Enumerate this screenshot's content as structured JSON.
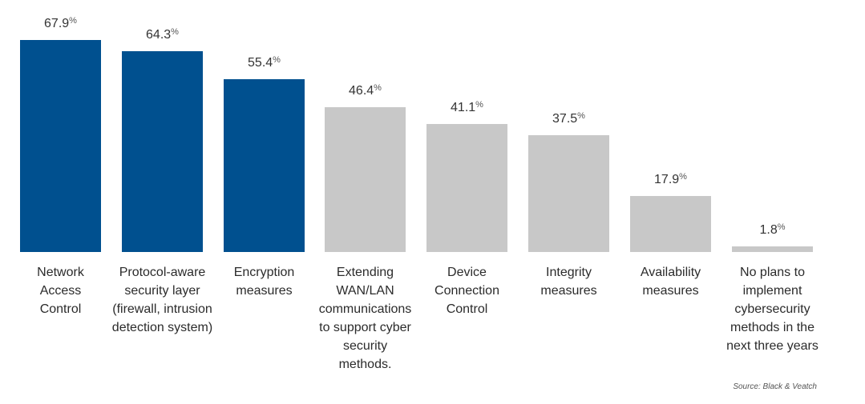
{
  "chart_data": {
    "type": "bar",
    "title": "",
    "xlabel": "",
    "ylabel": "",
    "ylim": [
      0,
      70
    ],
    "grid": false,
    "value_suffix": "%",
    "categories": [
      "Network Access Control",
      "Protocol-aware security layer (firewall, intrusion detection system)",
      "Encryption measures",
      "Extending WAN/LAN communications to support cyber security methods.",
      "Device Connection Control",
      "Integrity measures",
      "Availability measures",
      "No plans to implement cybersecurity methods in the next three years"
    ],
    "category_lines": [
      [
        "Network",
        "Access",
        "Control"
      ],
      [
        "Protocol-aware",
        "security layer",
        "(firewall, intrusion",
        "detection system)"
      ],
      [
        "Encryption",
        "measures"
      ],
      [
        "Extending",
        "WAN/LAN",
        "communications",
        "to support cyber",
        "security",
        "methods."
      ],
      [
        "Device",
        "Connection",
        "Control"
      ],
      [
        "Integrity",
        "measures"
      ],
      [
        "Availability",
        "measures"
      ],
      [
        "No plans to",
        "implement",
        "cybersecurity",
        "methods in the",
        "next three years"
      ]
    ],
    "values": [
      67.9,
      64.3,
      55.4,
      46.4,
      41.1,
      37.5,
      17.9,
      1.8
    ],
    "value_labels": [
      "67.9",
      "64.3",
      "55.4",
      "46.4",
      "41.1",
      "37.5",
      "17.9",
      "1.8"
    ],
    "highlighted": [
      true,
      true,
      true,
      false,
      false,
      false,
      false,
      false
    ],
    "colors": {
      "highlight": "#00508f",
      "default": "#c8c8c8"
    },
    "source": "Source: Black & Veatch"
  }
}
